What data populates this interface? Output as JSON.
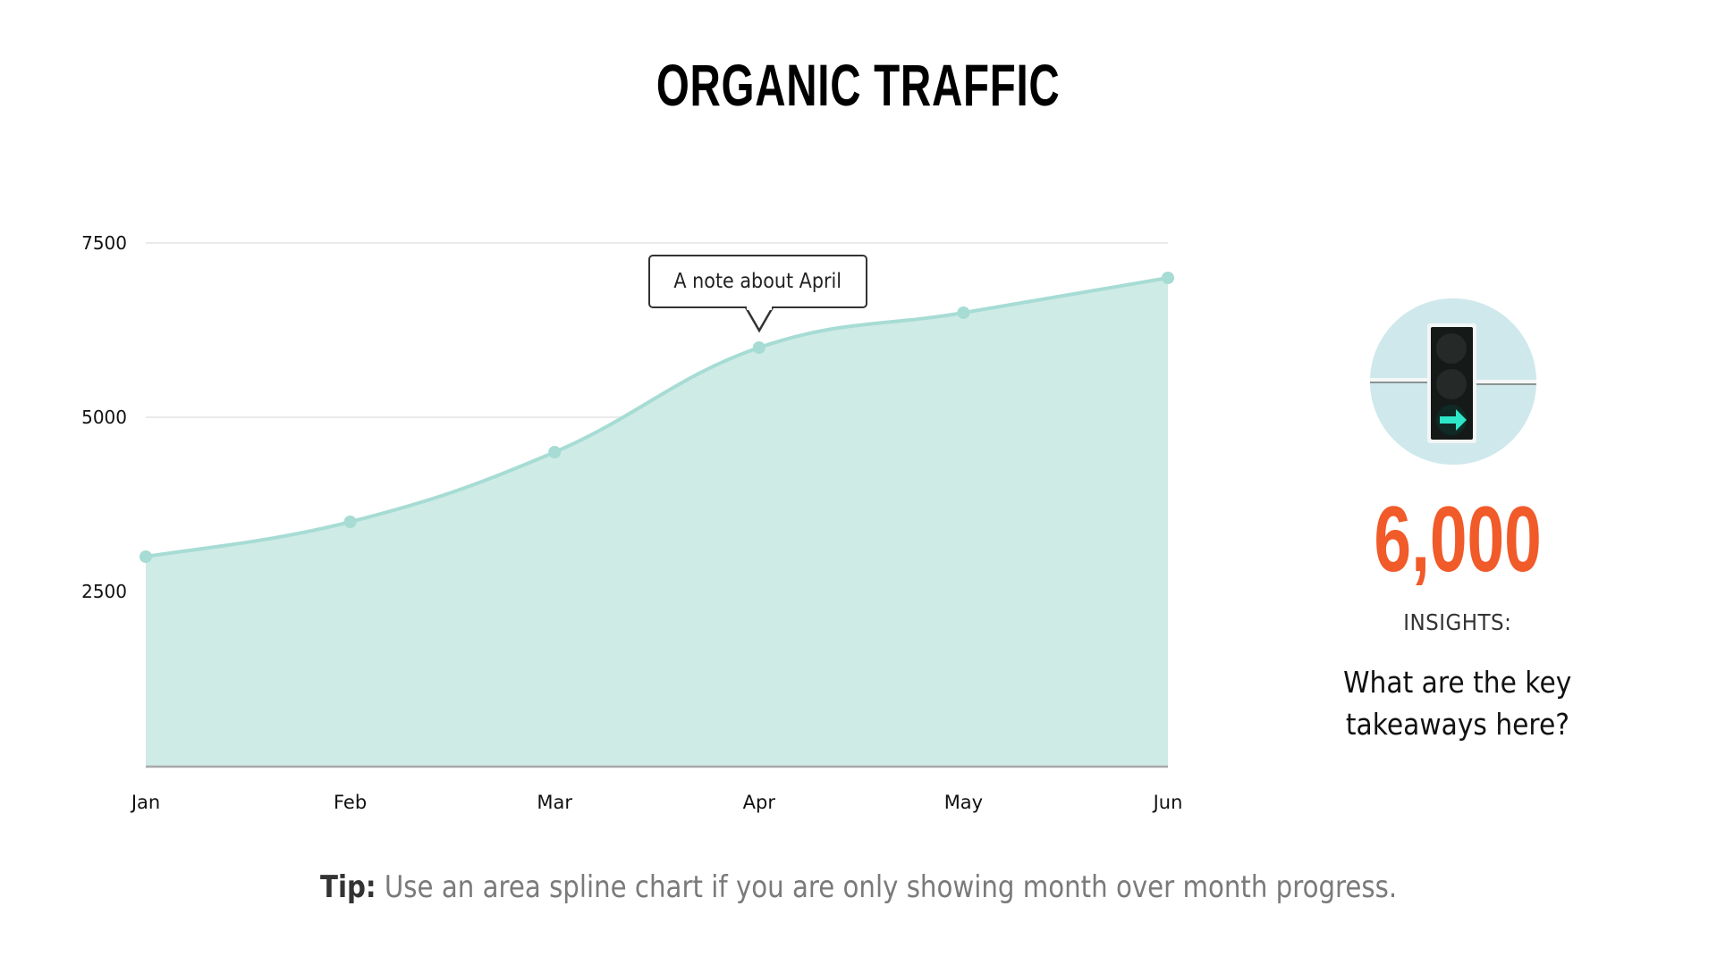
{
  "title": "ORGANIC TRAFFIC",
  "chart_data": {
    "type": "area",
    "subtype": "area spline",
    "title": "ORGANIC TRAFFIC",
    "categories": [
      "Jan",
      "Feb",
      "Mar",
      "Apr",
      "May",
      "Jun"
    ],
    "values": [
      3000,
      3500,
      4500,
      6000,
      6500,
      7000
    ],
    "xlabel": "",
    "ylabel": "",
    "ylim": [
      0,
      7500
    ],
    "yticks": [
      2500,
      5000,
      7500
    ],
    "ytick_labels": [
      "2500",
      "5000",
      "7500"
    ],
    "grid": true,
    "legend": "none",
    "annotations": [
      {
        "category": "Apr",
        "text": "A note about April"
      }
    ],
    "colors": {
      "fill": "#cfebe6",
      "line": "#a6dcd4",
      "marker": "#a6dcd4"
    }
  },
  "annotation": {
    "text": "A note about April"
  },
  "sidebar": {
    "icon": "traffic-light-icon",
    "big_number": "6,000",
    "big_number_color": "#f15a29",
    "insights_label": "INSIGHTS:",
    "insights_question_line1": "What are the key",
    "insights_question_line2": "takeaways here?"
  },
  "tip": {
    "label": "Tip:",
    "text": "Use an area spline chart if you are only showing month over month progress."
  }
}
